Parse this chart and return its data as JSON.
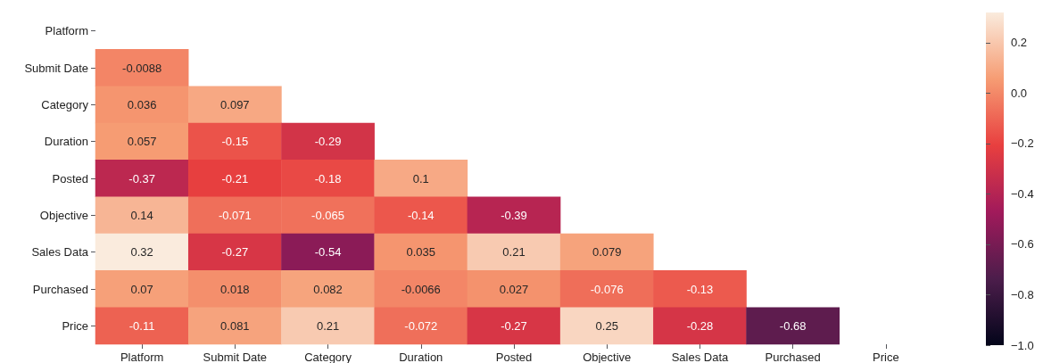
{
  "chart_data": {
    "type": "heatmap",
    "categories": [
      "Platform",
      "Submit Date",
      "Category",
      "Duration",
      "Posted",
      "Objective",
      "Sales Data",
      "Purchased",
      "Price"
    ],
    "y_categories": [
      "Platform",
      "Submit Date",
      "Category",
      "Duration",
      "Posted",
      "Objective",
      "Sales Data",
      "Purchased",
      "Price"
    ],
    "cells": [
      [
        null,
        null,
        null,
        null,
        null,
        null,
        null,
        null,
        null
      ],
      [
        -0.0088,
        null,
        null,
        null,
        null,
        null,
        null,
        null,
        null
      ],
      [
        0.036,
        0.097,
        null,
        null,
        null,
        null,
        null,
        null,
        null
      ],
      [
        0.057,
        -0.15,
        -0.29,
        null,
        null,
        null,
        null,
        null,
        null
      ],
      [
        -0.37,
        -0.21,
        -0.18,
        0.1,
        null,
        null,
        null,
        null,
        null
      ],
      [
        0.14,
        -0.071,
        -0.065,
        -0.14,
        -0.39,
        null,
        null,
        null,
        null
      ],
      [
        0.32,
        -0.27,
        -0.54,
        0.035,
        0.21,
        0.079,
        null,
        null,
        null
      ],
      [
        0.07,
        0.018,
        0.082,
        -0.0066,
        0.027,
        -0.076,
        -0.13,
        null,
        null
      ],
      [
        -0.11,
        0.081,
        0.21,
        -0.072,
        -0.27,
        0.25,
        -0.28,
        -0.68,
        null
      ]
    ],
    "clim": [
      -1.0,
      0.32
    ],
    "cticks": [
      {
        "value": -1.0,
        "label": "−1.0"
      },
      {
        "value": -0.8,
        "label": "−0.8"
      },
      {
        "value": -0.6,
        "label": "−0.6"
      },
      {
        "value": -0.4,
        "label": "−0.4"
      },
      {
        "value": -0.2,
        "label": "−0.2"
      },
      {
        "value": 0,
        "label": "0.0"
      },
      {
        "value": 0.2,
        "label": "0.2"
      }
    ],
    "colors": [
      "#03051a",
      "#4c1d4b",
      "#a11a5b",
      "#e83f3f",
      "#f69c73",
      "#faebdd"
    ],
    "data_labels": true
  }
}
